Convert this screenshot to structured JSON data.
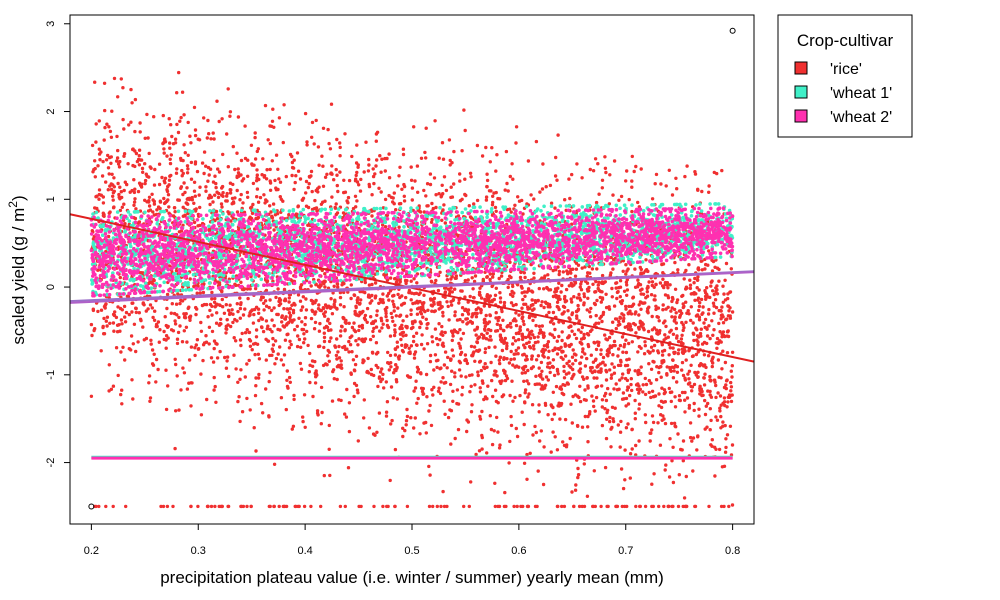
{
  "chart_data": {
    "type": "scatter",
    "xlabel": "precipitation plateau value (i.e. winter / summer) yearly mean (mm)",
    "ylabel": "scaled yield (g / m²)",
    "ylabel_main": "scaled yield (g / m",
    "ylabel_sup": "2",
    "ylabel_end": ")",
    "xlim": [
      0.18,
      0.82
    ],
    "ylim": [
      -2.7,
      3.1
    ],
    "x_ticks": [
      0.2,
      0.3,
      0.4,
      0.5,
      0.6,
      0.7,
      0.8
    ],
    "x_tick_labels": [
      "0.2",
      "0.3",
      "0.4",
      "0.5",
      "0.6",
      "0.7",
      "0.8"
    ],
    "y_ticks": [
      -2,
      -1,
      0,
      1,
      2,
      3
    ],
    "y_tick_labels": [
      "-2",
      "-1",
      "0",
      "1",
      "2",
      "3"
    ],
    "grid": false,
    "legend": {
      "title": "Crop-cultivar",
      "position": "outside-top-right",
      "entries": [
        {
          "label": "'rice'",
          "color": "#f03030"
        },
        {
          "label": "'wheat 1'",
          "color": "#40f0c8"
        },
        {
          "label": "'wheat 2'",
          "color": "#ff30b0"
        }
      ]
    },
    "series": [
      {
        "name": "'rice'",
        "color": "#f03030",
        "x_range": [
          0.2,
          0.8
        ],
        "trend_line": {
          "x": [
            0.18,
            0.82
          ],
          "y": [
            0.83,
            -0.85
          ]
        },
        "floor_value": -2.5,
        "approx_band": {
          "at_x_0.2": [
            -2.5,
            2.5
          ],
          "at_x_0.8": [
            -2.5,
            1.3
          ]
        }
      },
      {
        "name": "'wheat 1'",
        "color": "#40f0c8",
        "x_range": [
          0.2,
          0.8
        ],
        "trend_line": {
          "x": [
            0.18,
            0.82
          ],
          "y": [
            -0.16,
            0.18
          ]
        },
        "floor_value": -1.94,
        "approx_band": {
          "at_x_0.2": [
            -0.1,
            0.85
          ],
          "at_x_0.8": [
            0.35,
            0.95
          ]
        }
      },
      {
        "name": "'wheat 2'",
        "color": "#ff30b0",
        "x_range": [
          0.2,
          0.8
        ],
        "trend_line": {
          "x": [
            0.18,
            0.82
          ],
          "y": [
            -0.18,
            0.17
          ]
        },
        "floor_value": -1.95,
        "approx_band": {
          "at_x_0.2": [
            -0.1,
            0.8
          ],
          "at_x_0.8": [
            0.35,
            0.9
          ]
        }
      }
    ],
    "annotations": [
      {
        "type": "open-circle",
        "x": 0.8,
        "y": 2.92
      },
      {
        "type": "open-circle",
        "x": 0.2,
        "y": -2.5
      }
    ]
  }
}
